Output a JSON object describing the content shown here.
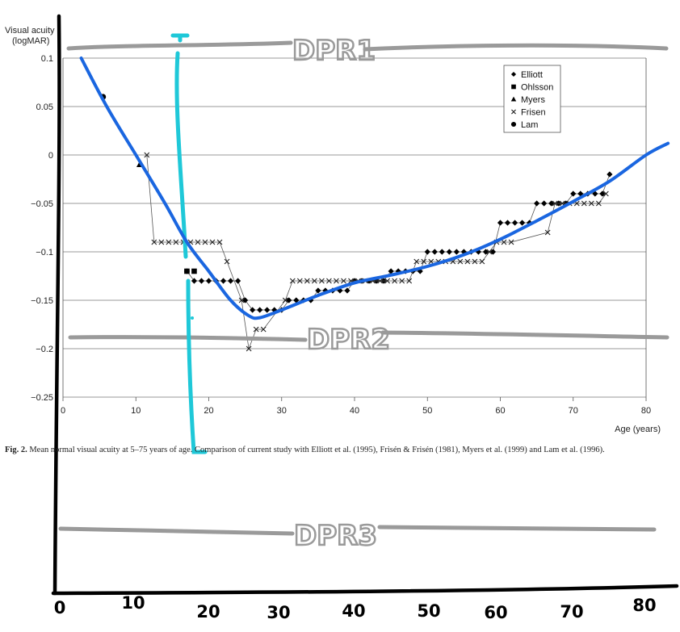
{
  "chart_data": {
    "type": "scatter",
    "ylabel_line1": "Visual acuity",
    "ylabel_line2": "(logMAR)",
    "xlabel": "Age (years)",
    "xlim": [
      0,
      80
    ],
    "ylim": [
      -0.25,
      0.1
    ],
    "xticks": [
      "0",
      "10",
      "20",
      "30",
      "40",
      "50",
      "60",
      "70",
      "80"
    ],
    "yticks": [
      "0.1",
      "0.05",
      "0",
      "−0.05",
      "−0.1",
      "−0.15",
      "−0.2",
      "−0.25"
    ],
    "grid": true,
    "legend_position": "top-right",
    "series": [
      {
        "name": "Elliott",
        "marker": "diamond",
        "connected": true,
        "points": [
          [
            17,
            -0.12
          ],
          [
            18,
            -0.13
          ],
          [
            19,
            -0.13
          ],
          [
            20,
            -0.13
          ],
          [
            21,
            -0.13
          ],
          [
            22,
            -0.13
          ],
          [
            23,
            -0.13
          ],
          [
            24,
            -0.13
          ],
          [
            25,
            -0.15
          ],
          [
            26,
            -0.16
          ],
          [
            27,
            -0.16
          ],
          [
            28,
            -0.16
          ],
          [
            29,
            -0.16
          ],
          [
            30,
            -0.16
          ],
          [
            31,
            -0.15
          ],
          [
            32,
            -0.15
          ],
          [
            33,
            -0.15
          ],
          [
            34,
            -0.15
          ],
          [
            35,
            -0.14
          ],
          [
            36,
            -0.14
          ],
          [
            37,
            -0.14
          ],
          [
            38,
            -0.14
          ],
          [
            39,
            -0.14
          ],
          [
            40,
            -0.13
          ],
          [
            41,
            -0.13
          ],
          [
            42,
            -0.13
          ],
          [
            43,
            -0.13
          ],
          [
            44,
            -0.13
          ],
          [
            45,
            -0.12
          ],
          [
            46,
            -0.12
          ],
          [
            47,
            -0.12
          ],
          [
            48,
            -0.12
          ],
          [
            49,
            -0.12
          ],
          [
            50,
            -0.1
          ],
          [
            51,
            -0.1
          ],
          [
            52,
            -0.1
          ],
          [
            53,
            -0.1
          ],
          [
            54,
            -0.1
          ],
          [
            55,
            -0.1
          ],
          [
            56,
            -0.1
          ],
          [
            57,
            -0.1
          ],
          [
            58,
            -0.1
          ],
          [
            59,
            -0.1
          ],
          [
            60,
            -0.07
          ],
          [
            61,
            -0.07
          ],
          [
            62,
            -0.07
          ],
          [
            63,
            -0.07
          ],
          [
            64,
            -0.07
          ],
          [
            65,
            -0.05
          ],
          [
            66,
            -0.05
          ],
          [
            67,
            -0.05
          ],
          [
            68,
            -0.05
          ],
          [
            69,
            -0.05
          ],
          [
            70,
            -0.04
          ],
          [
            71,
            -0.04
          ],
          [
            72,
            -0.04
          ],
          [
            73,
            -0.04
          ],
          [
            74,
            -0.04
          ],
          [
            75,
            -0.02
          ]
        ]
      },
      {
        "name": "Ohlsson",
        "marker": "square",
        "connected": false,
        "points": [
          [
            17,
            -0.12
          ],
          [
            18,
            -0.12
          ]
        ]
      },
      {
        "name": "Myers",
        "marker": "triangle",
        "connected": false,
        "points": [
          [
            10.5,
            -0.01
          ]
        ]
      },
      {
        "name": "Frisen",
        "marker": "cross",
        "connected": true,
        "points": [
          [
            11.5,
            0.0
          ],
          [
            12.5,
            -0.09
          ],
          [
            13.5,
            -0.09
          ],
          [
            14.5,
            -0.09
          ],
          [
            15.5,
            -0.09
          ],
          [
            16.5,
            -0.09
          ],
          [
            17.5,
            -0.09
          ],
          [
            18.5,
            -0.09
          ],
          [
            19.5,
            -0.09
          ],
          [
            20.5,
            -0.09
          ],
          [
            21.5,
            -0.09
          ],
          [
            22.5,
            -0.11
          ],
          [
            24.5,
            -0.15
          ],
          [
            25.5,
            -0.2
          ],
          [
            26.5,
            -0.18
          ],
          [
            27.5,
            -0.18
          ],
          [
            30.5,
            -0.15
          ],
          [
            31.5,
            -0.13
          ],
          [
            32.5,
            -0.13
          ],
          [
            33.5,
            -0.13
          ],
          [
            34.5,
            -0.13
          ],
          [
            35.5,
            -0.13
          ],
          [
            36.5,
            -0.13
          ],
          [
            37.5,
            -0.13
          ],
          [
            38.5,
            -0.13
          ],
          [
            39.5,
            -0.13
          ],
          [
            40.5,
            -0.13
          ],
          [
            41.5,
            -0.13
          ],
          [
            42.5,
            -0.13
          ],
          [
            43.5,
            -0.13
          ],
          [
            44.5,
            -0.13
          ],
          [
            45.5,
            -0.13
          ],
          [
            46.5,
            -0.13
          ],
          [
            47.5,
            -0.13
          ],
          [
            48.5,
            -0.11
          ],
          [
            49.5,
            -0.11
          ],
          [
            50.5,
            -0.11
          ],
          [
            51.5,
            -0.11
          ],
          [
            52.5,
            -0.11
          ],
          [
            53.5,
            -0.11
          ],
          [
            54.5,
            -0.11
          ],
          [
            55.5,
            -0.11
          ],
          [
            56.5,
            -0.11
          ],
          [
            57.5,
            -0.11
          ],
          [
            58.5,
            -0.1
          ],
          [
            59.5,
            -0.09
          ],
          [
            60.5,
            -0.09
          ],
          [
            61.5,
            -0.09
          ],
          [
            66.5,
            -0.08
          ],
          [
            67.5,
            -0.05
          ],
          [
            68.5,
            -0.05
          ],
          [
            69.5,
            -0.05
          ],
          [
            70.5,
            -0.05
          ],
          [
            71.5,
            -0.05
          ],
          [
            72.5,
            -0.05
          ],
          [
            73.5,
            -0.05
          ],
          [
            74.5,
            -0.04
          ]
        ]
      },
      {
        "name": "Lam",
        "marker": "circle",
        "connected": false,
        "points": [
          [
            5.5,
            0.06
          ]
        ]
      }
    ],
    "annotations": {
      "fit_curve_color": "#1a66e0",
      "fit_curve": [
        [
          2.5,
          0.1
        ],
        [
          6,
          0.05
        ],
        [
          10,
          0.0
        ],
        [
          14,
          -0.05
        ],
        [
          17,
          -0.09
        ],
        [
          20,
          -0.12
        ],
        [
          23,
          -0.15
        ],
        [
          25.5,
          -0.166
        ],
        [
          27,
          -0.168
        ],
        [
          30,
          -0.16
        ],
        [
          35,
          -0.145
        ],
        [
          40,
          -0.132
        ],
        [
          45,
          -0.124
        ],
        [
          50,
          -0.115
        ],
        [
          55,
          -0.103
        ],
        [
          60,
          -0.087
        ],
        [
          65,
          -0.068
        ],
        [
          70,
          -0.048
        ],
        [
          75,
          -0.027
        ],
        [
          80,
          0.0
        ],
        [
          83,
          0.012
        ]
      ],
      "cyan_color": "#1fc8d8",
      "hand_color": "#999999",
      "hand_labels": [
        "DPR1",
        "DPR2",
        "DPR3"
      ],
      "hand_axis_labels": [
        "0",
        "10",
        "20",
        "30",
        "40",
        "50",
        "60",
        "70",
        "80"
      ]
    }
  },
  "caption": {
    "bold": "Fig. 2.",
    "text": " Mean normal visual acuity at 5–75 years of age. Comparison of current study with Elliott et al. (1995), Frisén & Frisén (1981), Myers et al. (1999) and Lam et al. (1996)."
  }
}
